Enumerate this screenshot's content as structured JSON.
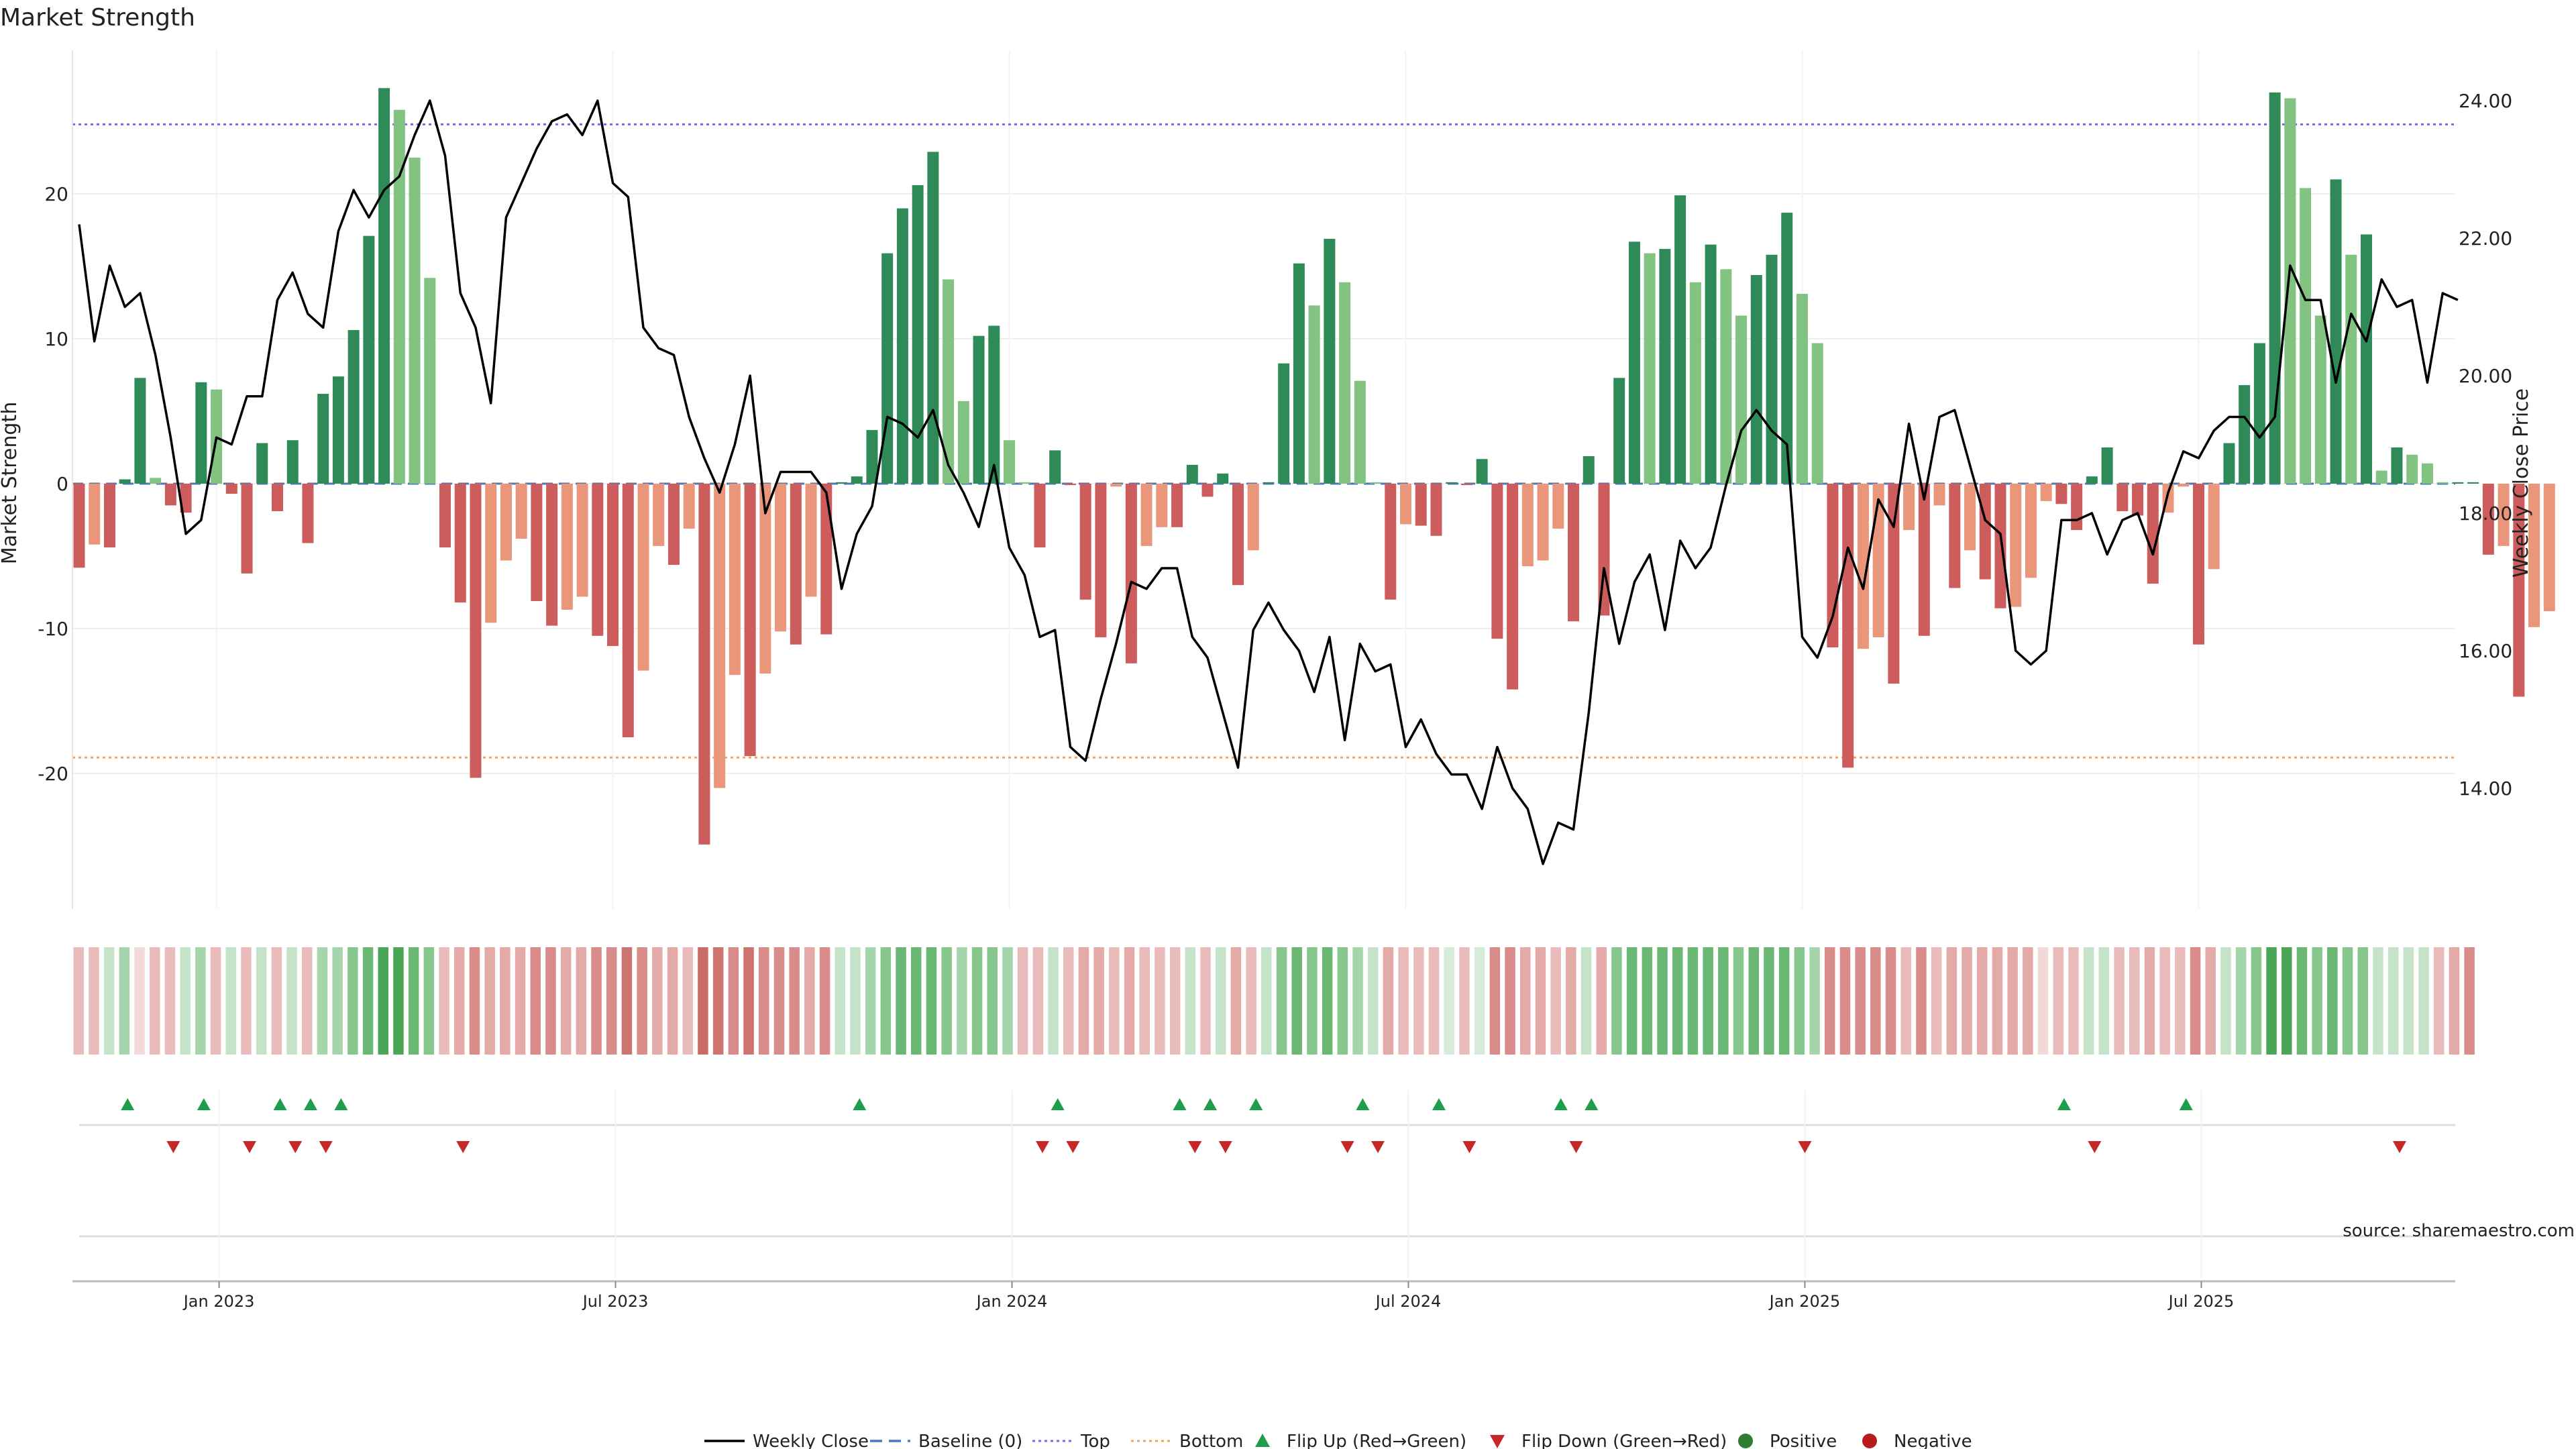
{
  "chart_data": {
    "type": "bar",
    "title": "Market Strength",
    "ylabel": "Market Strength",
    "ylabel_right": "Weekly Close Price",
    "ylim": [
      -29,
      30
    ],
    "ylim_right": [
      11.9,
      24.7
    ],
    "yticks": [
      "20",
      "10",
      "0",
      "-10",
      "-20"
    ],
    "yticks_right": [
      "24.00",
      "22.00",
      "20.00",
      "18.00",
      "16.00",
      "14.00"
    ],
    "x_tick_labels": [
      "Jan 2023",
      "Jul 2023",
      "Jan 2024",
      "Jul 2024",
      "Jan 2025",
      "Jul 2025"
    ],
    "x_tick_weeks": [
      9,
      35,
      61,
      87,
      113,
      139
    ],
    "top_line": 24.8,
    "bottom_line": -18.9,
    "baseline": 0,
    "strength_values": [
      -5.8,
      -4.2,
      -4.4,
      0.3,
      7.3,
      0.4,
      -1.5,
      -2.0,
      7.0,
      6.5,
      -0.7,
      -6.2,
      2.8,
      -1.9,
      3.0,
      -4.1,
      6.2,
      7.4,
      10.6,
      17.1,
      27.3,
      25.8,
      22.5,
      14.2,
      -4.4,
      -8.2,
      -20.3,
      -9.6,
      -5.3,
      -3.8,
      -8.1,
      -9.8,
      -8.7,
      -7.8,
      -10.5,
      -11.2,
      -17.5,
      -12.9,
      -4.3,
      -5.6,
      -3.1,
      -24.9,
      -21.0,
      -13.2,
      -18.8,
      -13.1,
      -10.2,
      -11.1,
      -7.8,
      -10.4,
      0.1,
      0.5,
      3.7,
      15.9,
      19.0,
      20.6,
      22.9,
      14.1,
      5.7,
      10.2,
      10.9,
      3.0,
      0.1,
      -4.4,
      2.3,
      -0.1,
      -8.0,
      -10.6,
      -0.2,
      -12.4,
      -4.3,
      -3.0,
      -3.0,
      1.3,
      -0.9,
      0.7,
      -7.0,
      -4.6,
      0.1,
      8.3,
      15.2,
      12.3,
      16.9,
      13.9,
      7.1,
      0.1,
      -8.0,
      -2.8,
      -2.9,
      -3.6,
      0.1,
      -0.1,
      1.7,
      -10.7,
      -14.2,
      -5.7,
      -5.3,
      -3.1,
      -9.5,
      1.9,
      -9.1,
      7.3,
      16.7,
      15.9,
      16.2,
      19.9,
      13.9,
      16.5,
      14.8,
      11.6,
      14.4,
      15.8,
      18.7,
      13.1,
      9.7,
      -11.3,
      -19.6,
      -11.4,
      -10.6,
      -13.8,
      -3.2,
      -10.5,
      -1.5,
      -7.2,
      -4.6,
      -6.6,
      -8.6,
      -8.5,
      -6.5,
      -1.2,
      -1.4,
      -3.2,
      0.5,
      2.5,
      -1.9,
      -2.2,
      -6.9,
      -2.0,
      -0.2,
      -11.1,
      -5.9,
      2.8,
      6.8,
      9.7,
      27.0,
      26.6,
      20.4,
      11.6,
      21.0,
      15.8,
      17.2,
      0.9,
      2.5,
      2.0,
      1.4,
      0.1,
      0.1,
      0.1,
      -4.9,
      -4.3,
      -14.7,
      -9.9,
      -8.8
    ],
    "series": [
      {
        "name": "Weekly Close",
        "values": [
          22.2,
          20.5,
          21.6,
          21.0,
          21.2,
          20.3,
          19.1,
          17.7,
          17.9,
          19.1,
          19.0,
          19.7,
          19.7,
          21.1,
          21.5,
          20.9,
          20.7,
          22.1,
          22.7,
          22.3,
          22.7,
          22.9,
          23.5,
          24.0,
          23.2,
          21.2,
          20.7,
          19.6,
          22.3,
          22.8,
          23.3,
          23.7,
          23.8,
          23.5,
          24.0,
          22.8,
          22.6,
          20.7,
          20.4,
          20.3,
          19.4,
          18.8,
          18.3,
          19.0,
          20.0,
          18.0,
          18.6,
          18.6,
          18.6,
          18.3,
          16.9,
          17.7,
          18.1,
          19.4,
          19.3,
          19.1,
          19.5,
          18.7,
          18.3,
          17.8,
          18.7,
          17.5,
          17.1,
          16.2,
          16.3,
          14.6,
          14.4,
          15.3,
          16.1,
          17.0,
          16.9,
          17.2,
          17.2,
          16.2,
          15.9,
          15.1,
          14.3,
          16.3,
          16.7,
          16.3,
          16.0,
          15.4,
          16.2,
          14.7,
          16.1,
          15.7,
          15.8,
          14.6,
          15.0,
          14.5,
          14.2,
          14.2,
          13.7,
          14.6,
          14.0,
          13.7,
          12.9,
          13.5,
          13.4,
          15.1,
          17.2,
          16.1,
          17.0,
          17.4,
          16.3,
          17.6,
          17.2,
          17.5,
          18.4,
          19.2,
          19.5,
          19.2,
          19.0,
          16.2,
          15.9,
          16.5,
          17.5,
          16.9,
          18.2,
          17.8,
          19.3,
          18.2,
          19.4,
          19.5,
          18.7,
          17.9,
          17.7,
          16.0,
          15.8,
          16.0,
          17.9,
          17.9,
          18.0,
          17.4,
          17.9,
          18.0,
          17.4,
          18.3,
          18.9,
          18.8,
          19.2,
          19.4,
          19.4,
          19.1,
          19.4,
          21.6,
          21.1,
          21.1,
          19.9,
          20.9,
          20.5,
          21.4,
          21.0,
          21.1,
          19.9,
          21.2,
          21.1
        ],
        "color": "#000000"
      }
    ],
    "heat_strip_weeks": 158,
    "heat_colors": [
      "#e9bcbb",
      "#e9bcbb",
      "#c4e3c8",
      "#a5d5ab",
      "#f2d9d8",
      "#e9bcbb",
      "#e9bcbb",
      "#c4e3c8",
      "#a5d5ab",
      "#e9bcbb",
      "#c4e3c8",
      "#e9bcbb",
      "#c4e3c8",
      "#e9bcbb",
      "#c4e3c8",
      "#e9bcbb",
      "#a5d5ab",
      "#a5d5ab",
      "#87c78e",
      "#6bb874",
      "#4aa656",
      "#4aa656",
      "#6bb874",
      "#87c78e",
      "#e9bcbb",
      "#e3aaa8",
      "#d98c89",
      "#e3aaa8",
      "#e3aaa8",
      "#e3aaa8",
      "#d98c89",
      "#d98c89",
      "#e3aaa8",
      "#e3aaa8",
      "#d98c89",
      "#d98c89",
      "#cd7470",
      "#d98c89",
      "#e3aaa8",
      "#e3aaa8",
      "#e9bcbb",
      "#c96b66",
      "#cd7470",
      "#d98c89",
      "#cd7470",
      "#d98c89",
      "#d98c89",
      "#d98c89",
      "#e3aaa8",
      "#d98c89",
      "#c4e3c8",
      "#c4e3c8",
      "#a5d5ab",
      "#87c78e",
      "#6bb874",
      "#6bb874",
      "#6bb874",
      "#87c78e",
      "#a5d5ab",
      "#87c78e",
      "#87c78e",
      "#a5d5ab",
      "#e9bcbb",
      "#e9bcbb",
      "#c4e3c8",
      "#e9bcbb",
      "#e3aaa8",
      "#e3aaa8",
      "#e9bcbb",
      "#e3aaa8",
      "#e9bcbb",
      "#e9bcbb",
      "#e9bcbb",
      "#c4e3c8",
      "#e9bcbb",
      "#c4e3c8",
      "#e3aaa8",
      "#e9bcbb",
      "#c4e3c8",
      "#87c78e",
      "#6bb874",
      "#87c78e",
      "#6bb874",
      "#87c78e",
      "#a5d5ab",
      "#c4e3c8",
      "#e3aaa8",
      "#e9bcbb",
      "#e9bcbb",
      "#e9bcbb",
      "#d6ecd9",
      "#e9bcbb",
      "#d6ecd9",
      "#d98c89",
      "#d98c89",
      "#e3aaa8",
      "#e3aaa8",
      "#e9bcbb",
      "#e3aaa8",
      "#c4e3c8",
      "#e3aaa8",
      "#87c78e",
      "#6bb874",
      "#6bb874",
      "#6bb874",
      "#6bb874",
      "#6bb874",
      "#6bb874",
      "#6bb874",
      "#87c78e",
      "#6bb874",
      "#6bb874",
      "#6bb874",
      "#87c78e",
      "#a5d5ab",
      "#d98c89",
      "#d98c89",
      "#d98c89",
      "#d98c89",
      "#d98c89",
      "#e9bcbb",
      "#d98c89",
      "#e9bcbb",
      "#e3aaa8",
      "#e3aaa8",
      "#e3aaa8",
      "#e3aaa8",
      "#e3aaa8",
      "#e3aaa8",
      "#f2d9d8",
      "#e9bcbb",
      "#e9bcbb",
      "#c4e3c8",
      "#c4e3c8",
      "#e9bcbb",
      "#e9bcbb",
      "#e3aaa8",
      "#e9bcbb",
      "#e9bcbb",
      "#d98c89",
      "#e3aaa8",
      "#c4e3c8",
      "#a5d5ab",
      "#87c78e",
      "#4aa656",
      "#4aa656",
      "#6bb874",
      "#87c78e",
      "#6bb874",
      "#87c78e",
      "#87c78e",
      "#c4e3c8",
      "#c4e3c8",
      "#c4e3c8",
      "#c4e3c8",
      "#e9bcbb",
      "#e3aaa8",
      "#d98c89",
      "#d98c89",
      "#e3aaa8"
    ],
    "flip_up_weeks": [
      3,
      8,
      13,
      15,
      17,
      51,
      64,
      72,
      74,
      77,
      84,
      89,
      97,
      99,
      130,
      138
    ],
    "flip_down_weeks": [
      6,
      11,
      14,
      16,
      25,
      63,
      65,
      73,
      75,
      83,
      85,
      91,
      98,
      113,
      132,
      152
    ],
    "colors": {
      "positive_strong": "#2e8b57",
      "positive_weak": "#82c382",
      "negative_strong": "#cd5c5c",
      "negative_weak": "#e9967a",
      "top_line": "#7b68ee",
      "bottom_line": "#f4a460",
      "baseline": "#4a7ab8",
      "flip_up": "#1e9e4a",
      "flip_down": "#c62828",
      "positive_dot": "#2e7d32",
      "negative_dot": "#b71c1c"
    },
    "legend": [
      "Weekly Close",
      "Baseline (0)",
      "Top",
      "Bottom",
      "Flip Up (Red→Green)",
      "Flip Down (Green→Red)",
      "Positive",
      "Negative"
    ],
    "source": "source: sharemaestro.com"
  }
}
